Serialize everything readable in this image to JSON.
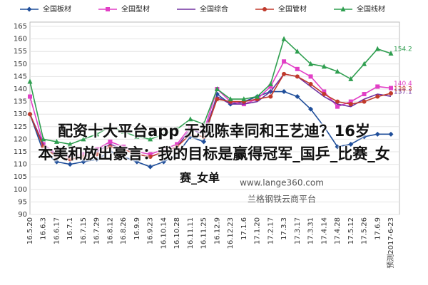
{
  "chart_data": {
    "type": "line",
    "categories": [
      "16.5.20",
      "16.6.3",
      "16.6.17",
      "16.7.1",
      "16.7.15",
      "16.7.29",
      "16.8.12",
      "16.8.26",
      "16.9.9",
      "16.9.23",
      "16.10.14",
      "16.10.28",
      "16.11.11",
      "16.11.25",
      "16.12.9",
      "16.12.23",
      "17.1.6",
      "17.1.20",
      "17.2.17",
      "17.3.3",
      "17.3.17",
      "17.3.31",
      "17.4.14",
      "17.4.28",
      "17.5.12",
      "17.5.26",
      "17.6.9",
      "预测2017-6-23"
    ],
    "series": [
      {
        "name": "全国板材",
        "color": "#1f4e9a",
        "marker": "diamond",
        "values": [
          130,
          115,
          111,
          110,
          111,
          112,
          115,
          113,
          111,
          109,
          111,
          114,
          121,
          119,
          138,
          134,
          135,
          137,
          139,
          139,
          137,
          132,
          125,
          117,
          118,
          121,
          122,
          122
        ]
      },
      {
        "name": "全国型材",
        "color": "#e23fc6",
        "marker": "square",
        "labeled_last": true,
        "values": [
          137,
          118,
          114,
          113,
          114,
          116,
          119,
          117,
          115,
          114,
          116,
          118,
          125,
          123,
          140,
          135,
          134,
          136,
          141,
          151,
          148,
          145,
          139,
          133,
          135,
          138,
          141,
          140.4
        ]
      },
      {
        "name": "全国综合",
        "color": "#7030a0",
        "marker": "none",
        "labeled_last": true,
        "values": [
          130,
          118,
          113,
          112,
          113,
          115,
          118,
          116,
          114,
          113,
          115,
          117,
          124,
          122,
          137,
          134,
          134,
          135,
          139,
          146,
          145,
          141,
          137,
          134,
          133,
          136,
          138,
          137.1
        ]
      },
      {
        "name": "全国管材",
        "color": "#c0392b",
        "marker": "circle",
        "labeled_last": true,
        "values": [
          130,
          117,
          113,
          112,
          113,
          114,
          117,
          116,
          114,
          113,
          115,
          117,
          122,
          121,
          136,
          135,
          135,
          136,
          137,
          146,
          145,
          142,
          138,
          135,
          134,
          135,
          137,
          138.3
        ]
      },
      {
        "name": "全国线材",
        "color": "#2e9e4f",
        "marker": "triangle",
        "labeled_last": true,
        "values": [
          143,
          120,
          119,
          118,
          120,
          122,
          125,
          123,
          121,
          120,
          122,
          124,
          128,
          126,
          140,
          136,
          136,
          137,
          142,
          160,
          155,
          150,
          149,
          147,
          144,
          150,
          156,
          154.2
        ]
      }
    ],
    "ylim": [
      90,
      165
    ],
    "yticks": [
      90,
      95,
      100,
      105,
      110,
      115,
      120,
      125,
      130,
      135,
      140,
      145,
      150,
      155,
      160,
      165
    ],
    "grid": true,
    "watermark": [
      "www.lange360.com",
      "兰格钢铁云商平台"
    ],
    "overlay": [
      "配资十大平台app 无视陈幸同和王艺迪？16岁",
      "本美和放出豪言：我的目标是赢得冠军_国乒_比赛_女",
      "赛_女单"
    ]
  }
}
